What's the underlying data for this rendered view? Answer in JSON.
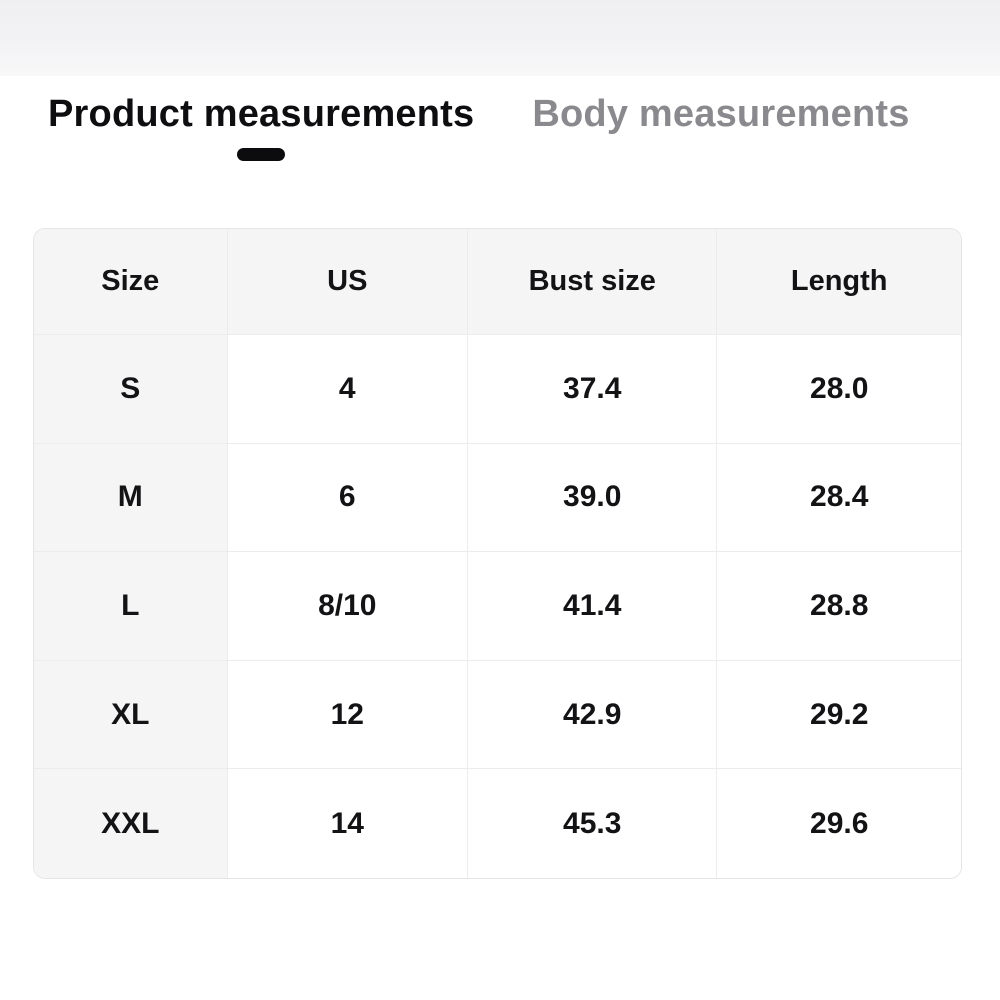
{
  "tabs": [
    {
      "label": "Product measurements",
      "active": true
    },
    {
      "label": "Body measurements",
      "active": false
    }
  ],
  "table": {
    "columns": [
      "Size",
      "US",
      "Bust size",
      "Length"
    ],
    "rows": [
      [
        "S",
        "4",
        "37.4",
        "28.0"
      ],
      [
        "M",
        "6",
        "39.0",
        "28.4"
      ],
      [
        "L",
        "8/10",
        "41.4",
        "28.8"
      ],
      [
        "XL",
        "12",
        "42.9",
        "29.2"
      ],
      [
        "XXL",
        "14",
        "45.3",
        "29.6"
      ]
    ]
  },
  "colors": {
    "active_tab_text": "#0e0e10",
    "inactive_tab_text": "#8a8a8e",
    "tab_indicator": "#0c0c0e",
    "header_background": "#f5f5f6",
    "grid_line": "#ececee",
    "top_band": "#f0f0f2"
  }
}
